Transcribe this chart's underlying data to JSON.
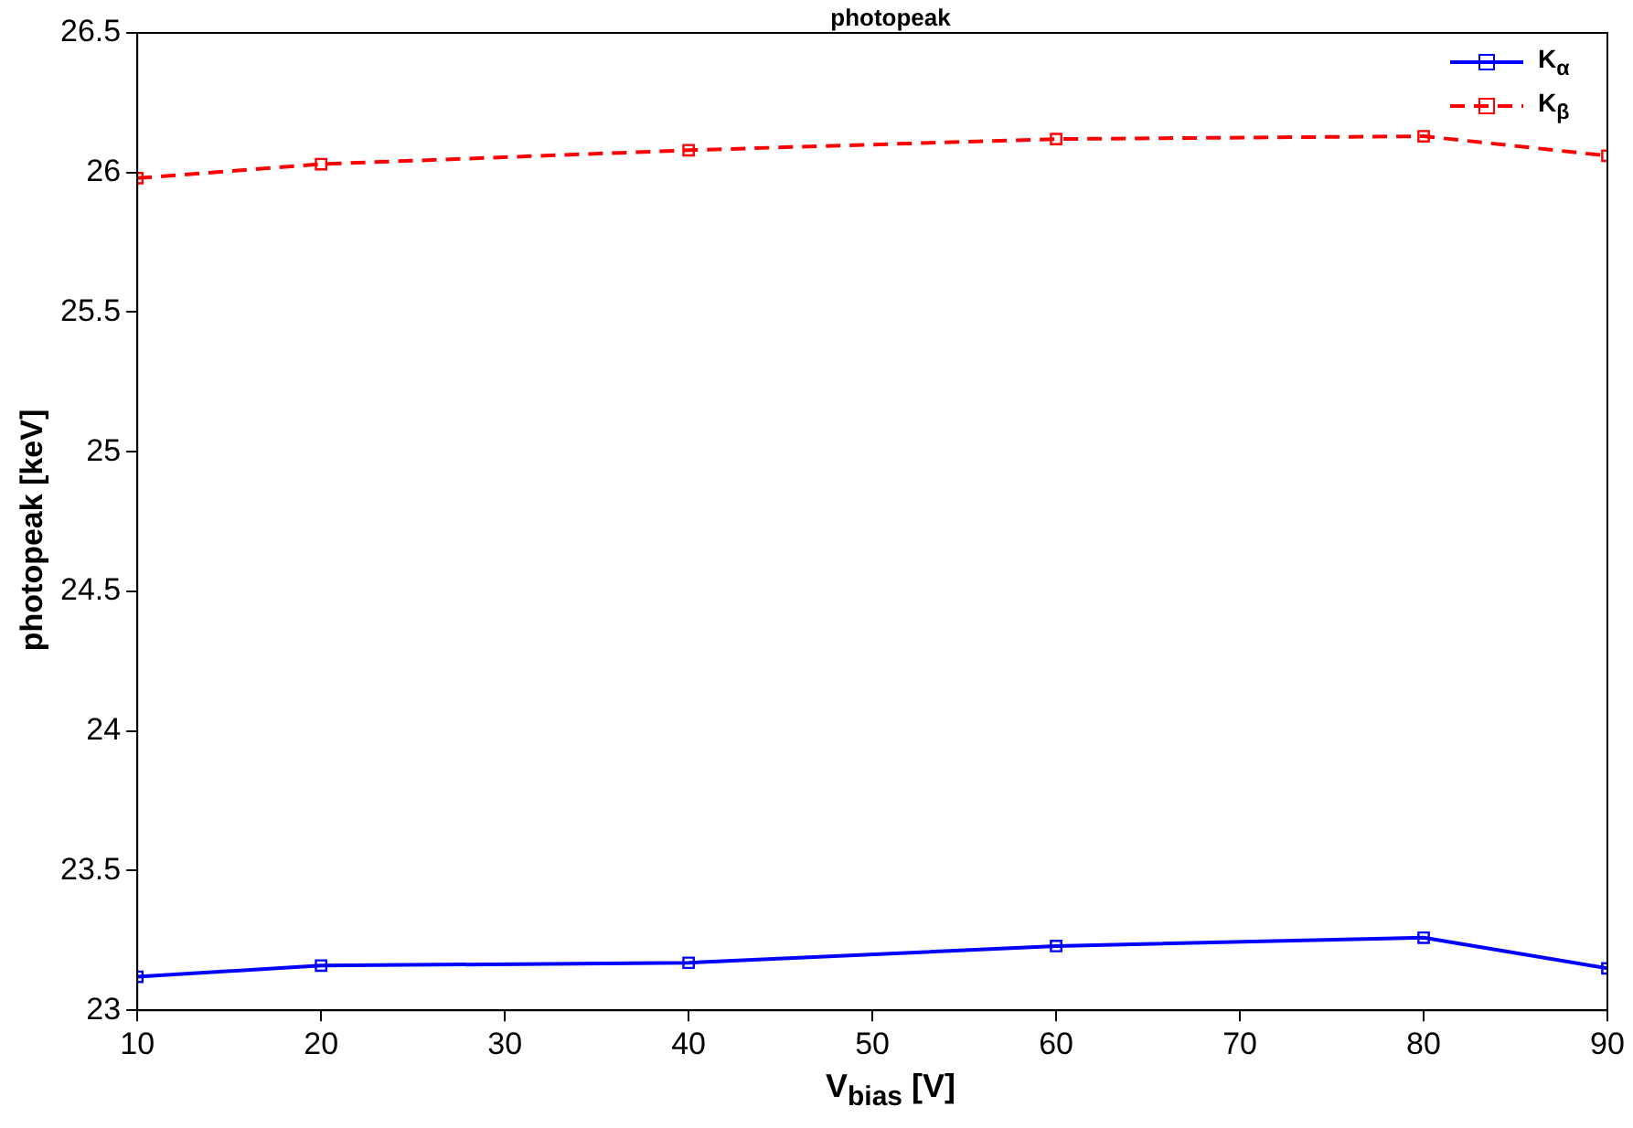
{
  "chart_data": {
    "type": "line",
    "title": "photopeak",
    "xlabel": "V$_{bias}$ [V]",
    "ylabel": "photopeak [keV]",
    "x": [
      10,
      20,
      40,
      60,
      80,
      90
    ],
    "series": [
      {
        "name": "K$_{α}$",
        "color": "#0000ff",
        "values": [
          23.12,
          23.16,
          23.17,
          23.23,
          23.26,
          23.15
        ],
        "line_style": "solid"
      },
      {
        "name": "K$_{β}$",
        "color": "#ff0000",
        "values": [
          25.98,
          26.03,
          26.08,
          26.12,
          26.13,
          26.06
        ],
        "line_style": "dashed"
      }
    ],
    "xlim": [
      10,
      90
    ],
    "xticks": [
      10,
      20,
      30,
      40,
      50,
      60,
      70,
      80,
      90
    ],
    "ylim": [
      23,
      26.5
    ],
    "yticks": [
      23,
      23.5,
      24,
      24.5,
      25,
      25.5,
      26,
      26.5
    ],
    "grid": false,
    "legend": "top right",
    "marker": "square"
  }
}
